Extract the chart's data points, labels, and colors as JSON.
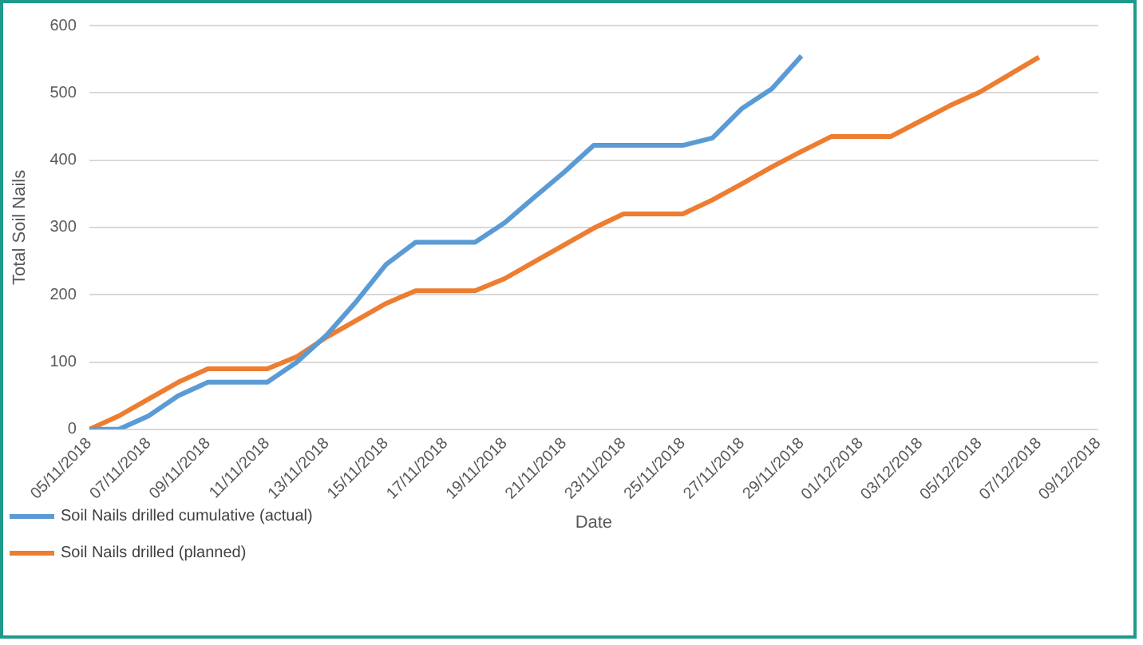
{
  "chart_data": {
    "type": "line",
    "xlabel": "Date",
    "ylabel": "Total Soil Nails",
    "x": [
      "2018-11-05",
      "2018-11-06",
      "2018-11-07",
      "2018-11-08",
      "2018-11-09",
      "2018-11-10",
      "2018-11-11",
      "2018-11-12",
      "2018-11-13",
      "2018-11-14",
      "2018-11-15",
      "2018-11-16",
      "2018-11-17",
      "2018-11-18",
      "2018-11-19",
      "2018-11-20",
      "2018-11-21",
      "2018-11-22",
      "2018-11-23",
      "2018-11-24",
      "2018-11-25",
      "2018-11-26",
      "2018-11-27",
      "2018-11-28",
      "2018-11-29",
      "2018-11-30",
      "2018-12-01",
      "2018-12-02",
      "2018-12-03",
      "2018-12-04",
      "2018-12-05",
      "2018-12-06",
      "2018-12-07"
    ],
    "series": [
      {
        "name": "Soil Nails drilled cumulative (actual)",
        "color": "#5b9bd5",
        "values": [
          0,
          0,
          20,
          50,
          70,
          70,
          70,
          100,
          140,
          190,
          245,
          278,
          278,
          278,
          307,
          345,
          382,
          422,
          422,
          422,
          422,
          433,
          477,
          506,
          555,
          null,
          null,
          null,
          null,
          null,
          null,
          null,
          null
        ]
      },
      {
        "name": "Soil Nails drilled (planned)",
        "color": "#ed7d31",
        "values": [
          0,
          20,
          45,
          70,
          90,
          90,
          90,
          108,
          137,
          162,
          187,
          206,
          206,
          206,
          224,
          249,
          274,
          299,
          320,
          320,
          320,
          341,
          365,
          390,
          413,
          435,
          435,
          435,
          458,
          481,
          501,
          527,
          553
        ]
      }
    ],
    "xlim": [
      "2018-11-05",
      "2018-12-09"
    ],
    "xticks": [
      {
        "value": "2018-11-05",
        "label": "05/11/2018"
      },
      {
        "value": "2018-11-07",
        "label": "07/11/2018"
      },
      {
        "value": "2018-11-09",
        "label": "09/11/2018"
      },
      {
        "value": "2018-11-11",
        "label": "11/11/2018"
      },
      {
        "value": "2018-11-13",
        "label": "13/11/2018"
      },
      {
        "value": "2018-11-15",
        "label": "15/11/2018"
      },
      {
        "value": "2018-11-17",
        "label": "17/11/2018"
      },
      {
        "value": "2018-11-19",
        "label": "19/11/2018"
      },
      {
        "value": "2018-11-21",
        "label": "21/11/2018"
      },
      {
        "value": "2018-11-23",
        "label": "23/11/2018"
      },
      {
        "value": "2018-11-25",
        "label": "25/11/2018"
      },
      {
        "value": "2018-11-27",
        "label": "27/11/2018"
      },
      {
        "value": "2018-11-29",
        "label": "29/11/2018"
      },
      {
        "value": "2018-12-01",
        "label": "01/12/2018"
      },
      {
        "value": "2018-12-03",
        "label": "03/12/2018"
      },
      {
        "value": "2018-12-05",
        "label": "05/12/2018"
      },
      {
        "value": "2018-12-07",
        "label": "07/12/2018"
      },
      {
        "value": "2018-12-09",
        "label": "09/12/2018"
      }
    ],
    "ylim": [
      0,
      600
    ],
    "yticks": [
      0,
      100,
      200,
      300,
      400,
      500,
      600
    ],
    "grid": "y",
    "legend": "bottom left",
    "marker": "none",
    "line_style": "solid"
  }
}
